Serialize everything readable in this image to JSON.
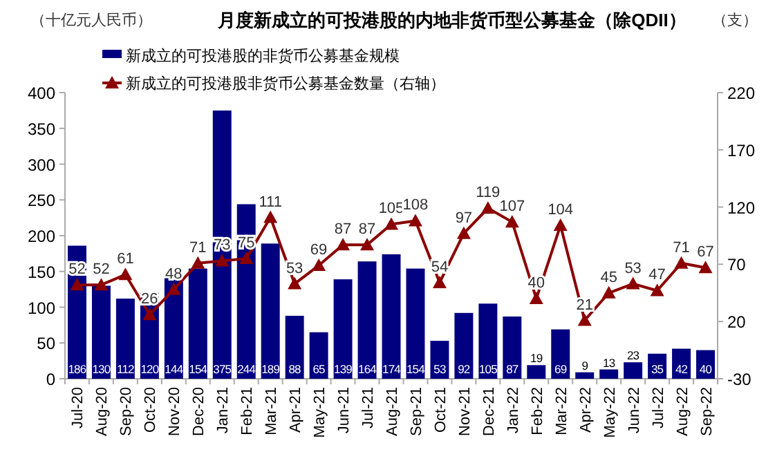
{
  "chart_data": {
    "type": "bar",
    "title": "月度新成立的可投港股的内地非货币型公募基金（除QDII）",
    "ylabel": "（十亿元人民币）",
    "y2label": "（支）",
    "categories": [
      "Jul-20",
      "Aug-20",
      "Sep-20",
      "Oct-20",
      "Nov-20",
      "Dec-20",
      "Jan-21",
      "Feb-21",
      "Mar-21",
      "Apr-21",
      "May-21",
      "Jun-21",
      "Jul-21",
      "Aug-21",
      "Sep-21",
      "Oct-21",
      "Nov-21",
      "Dec-21",
      "Jan-22",
      "Feb-22",
      "Mar-22",
      "Apr-22",
      "May-22",
      "Jun-22",
      "Jul-22",
      "Aug-22",
      "Sep-22"
    ],
    "series": [
      {
        "name": "新成立的可投港股的非货币公募基金规模",
        "color": "#000080",
        "values": [
          186,
          130,
          112,
          120,
          144,
          154,
          375,
          244,
          189,
          88,
          65,
          139,
          164,
          174,
          154,
          53,
          92,
          105,
          87,
          19,
          69,
          9,
          13,
          23,
          35,
          42,
          40
        ]
      },
      {
        "name": "新成立的可投港股非货币公募基金数量（右轴）",
        "type": "line",
        "axis": "y2",
        "color": "#8b0000",
        "marker": "triangle",
        "values": [
          52,
          52,
          61,
          26,
          48,
          71,
          73,
          75,
          111,
          53,
          69,
          87,
          87,
          105,
          108,
          54,
          97,
          119,
          107,
          40,
          104,
          21,
          45,
          53,
          47,
          71,
          67
        ]
      }
    ],
    "ylim": [
      0,
      400
    ],
    "yticks": [
      0,
      50,
      100,
      150,
      200,
      250,
      300,
      350,
      400
    ],
    "y2lim": [
      -30,
      220
    ],
    "y2ticks": [
      -30,
      20,
      70,
      120,
      170,
      220
    ],
    "data_labels": true,
    "legend": "top left",
    "grid": false
  }
}
